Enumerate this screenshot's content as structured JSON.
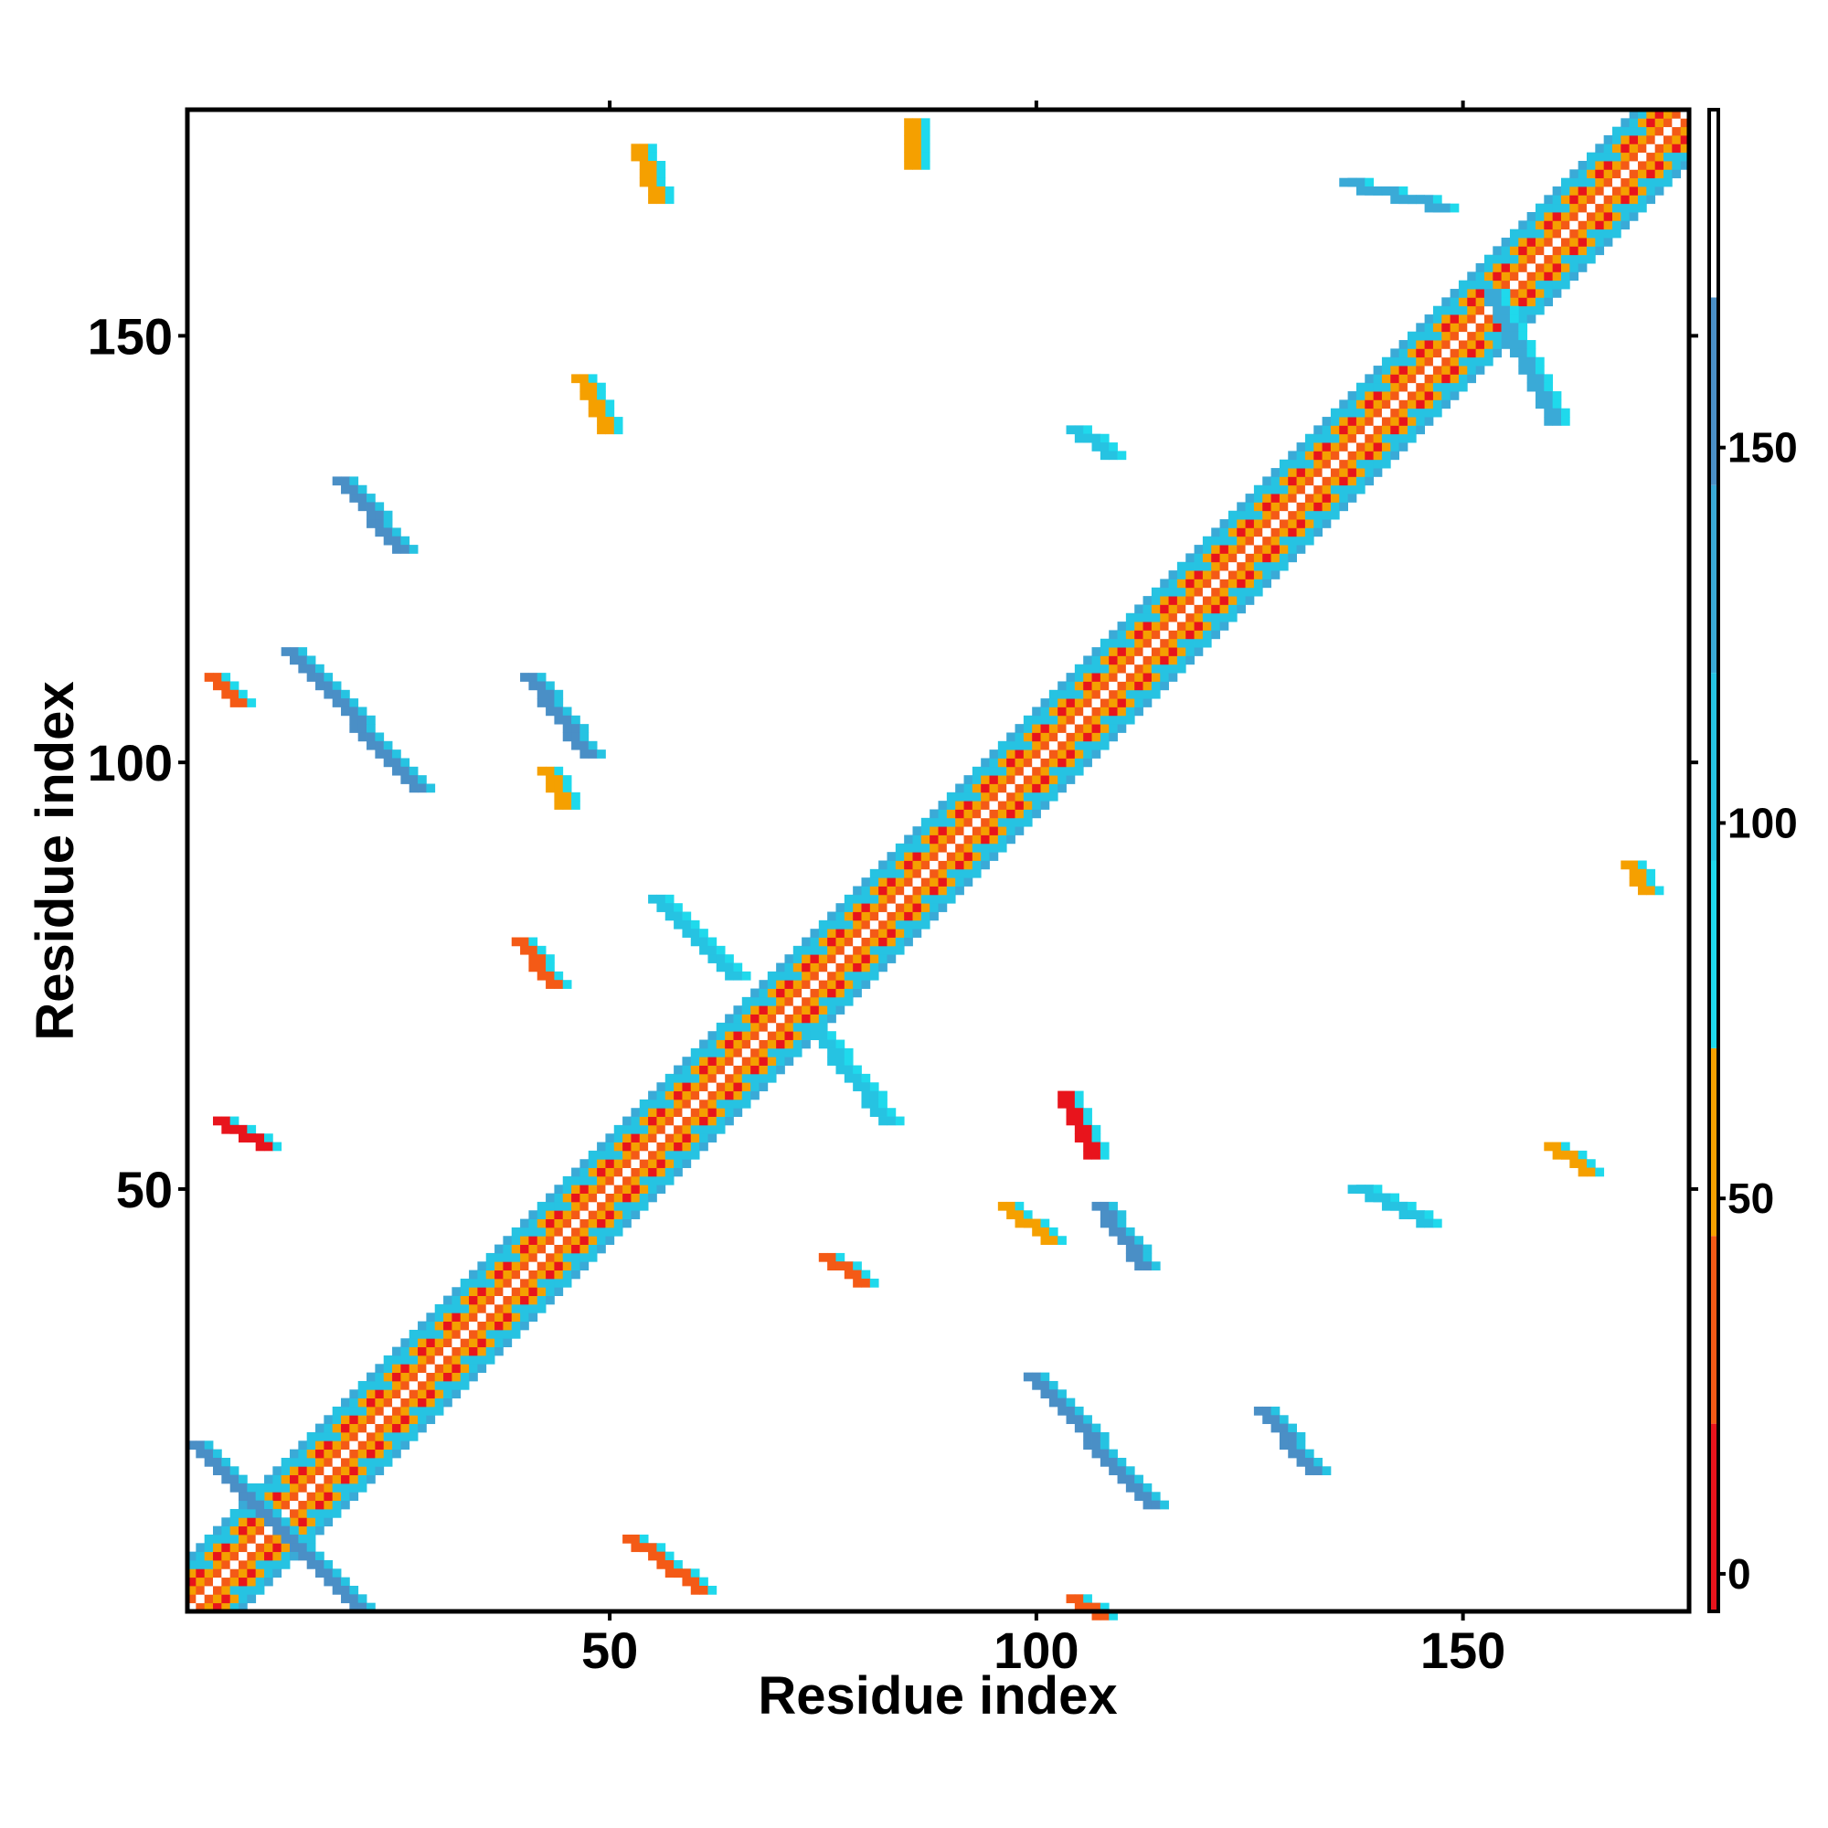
{
  "chart_data": {
    "type": "heatmap",
    "title": "",
    "xlabel": "Residue index",
    "ylabel": "Residue index",
    "xlim": [
      1,
      176
    ],
    "ylim": [
      1,
      176
    ],
    "x_ticks": [
      50,
      100,
      150
    ],
    "y_ticks": [
      50,
      100,
      150
    ],
    "grid": false,
    "legend": "colorbar on the right",
    "colorbar": {
      "ticks": [
        0,
        50,
        100,
        150
      ],
      "range": [
        -5,
        195
      ],
      "bands": [
        {
          "from": -5,
          "to": 20,
          "color": "#E8141C"
        },
        {
          "from": 20,
          "to": 45,
          "color": "#F45A16"
        },
        {
          "from": 45,
          "to": 70,
          "color": "#F5A000"
        },
        {
          "from": 70,
          "to": 95,
          "color": "#1FD9EC"
        },
        {
          "from": 95,
          "to": 120,
          "color": "#26C3E2"
        },
        {
          "from": 120,
          "to": 145,
          "color": "#3AAAD7"
        },
        {
          "from": 145,
          "to": 170,
          "color": "#4A8FC6"
        },
        {
          "from": 170,
          "to": 195,
          "color": "#FFFFFF"
        }
      ]
    },
    "diagonal_band": {
      "from": 1,
      "to": 176,
      "half_width": 6
    },
    "contact_clusters": [
      {
        "x0": 1,
        "y0": 20,
        "x1": 20,
        "y1": 1,
        "value": 150
      },
      {
        "x0": 107,
        "y0": 48,
        "x1": 112,
        "y1": 41,
        "value": 150
      },
      {
        "x0": 99,
        "y0": 28,
        "x1": 113,
        "y1": 13,
        "value": 150
      },
      {
        "x0": 126,
        "y0": 24,
        "x1": 132,
        "y1": 17,
        "value": 150
      },
      {
        "x0": 137,
        "y0": 50,
        "x1": 145,
        "y1": 46,
        "value": 110
      },
      {
        "x0": 12,
        "y0": 113,
        "x1": 27,
        "y1": 97,
        "value": 150
      },
      {
        "x0": 40,
        "y0": 110,
        "x1": 47,
        "y1": 101,
        "value": 150
      },
      {
        "x0": 18,
        "y0": 133,
        "x1": 25,
        "y1": 125,
        "value": 150
      },
      {
        "x0": 46,
        "y0": 145,
        "x1": 49,
        "y1": 139,
        "value": 60
      },
      {
        "x0": 74,
        "y0": 68,
        "x1": 82,
        "y1": 58,
        "value": 110
      },
      {
        "x0": 55,
        "y0": 84,
        "x1": 64,
        "y1": 75,
        "value": 110
      },
      {
        "x0": 75,
        "y0": 42,
        "x1": 79,
        "y1": 39,
        "value": 30
      },
      {
        "x0": 39,
        "y0": 79,
        "x1": 43,
        "y1": 74,
        "value": 30
      },
      {
        "x0": 42,
        "y0": 99,
        "x1": 44,
        "y1": 95,
        "value": 55
      },
      {
        "x0": 96,
        "y0": 48,
        "x1": 101,
        "y1": 44,
        "value": 55
      },
      {
        "x0": 103,
        "y0": 61,
        "x1": 106,
        "y1": 54,
        "value": 10
      },
      {
        "x0": 3,
        "y0": 110,
        "x1": 6,
        "y1": 107,
        "value": 30
      },
      {
        "x0": 53,
        "y0": 172,
        "x1": 55,
        "y1": 166,
        "value": 60
      },
      {
        "x0": 85,
        "y0": 175,
        "x1": 85,
        "y1": 170,
        "value": 60
      },
      {
        "x0": 160,
        "y0": 55,
        "x1": 164,
        "y1": 52,
        "value": 60
      },
      {
        "x0": 169,
        "y0": 88,
        "x1": 171,
        "y1": 85,
        "value": 60
      },
      {
        "x0": 104,
        "y0": 139,
        "x1": 108,
        "y1": 136,
        "value": 110
      },
      {
        "x0": 153,
        "y0": 155,
        "x1": 160,
        "y1": 140,
        "value": 130
      },
      {
        "x0": 136,
        "y0": 168,
        "x1": 147,
        "y1": 165,
        "value": 130
      },
      {
        "x0": 52,
        "y0": 9,
        "x1": 60,
        "y1": 3,
        "value": 30
      },
      {
        "x0": 4,
        "y0": 58,
        "x1": 9,
        "y1": 55,
        "value": 10
      },
      {
        "x0": 104,
        "y0": 2,
        "x1": 107,
        "y1": 0,
        "value": 30
      }
    ]
  }
}
